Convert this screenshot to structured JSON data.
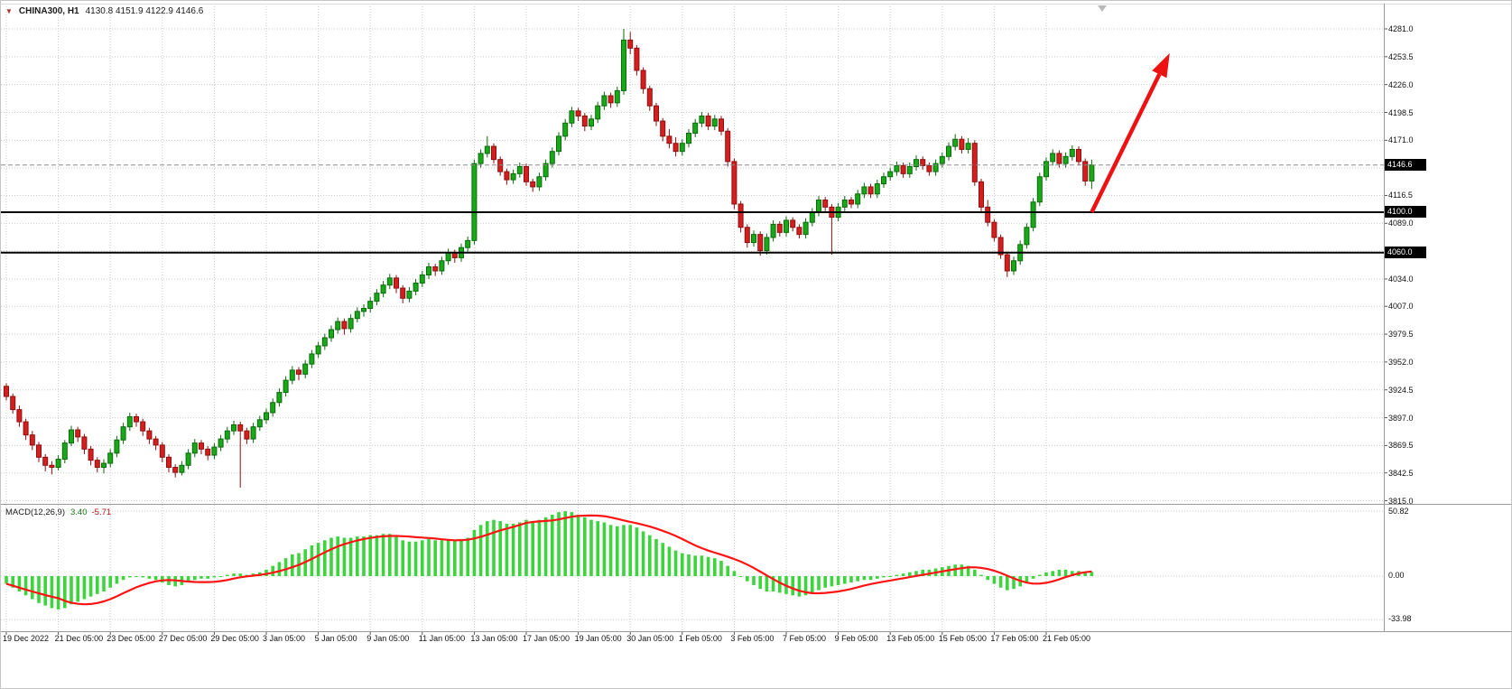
{
  "header": {
    "symbol_timeframe": "CHINA300, H1",
    "ohlc": "4130.8 4151.9 4122.9 4146.6"
  },
  "macd_panel": {
    "label": "MACD(12,26,9)",
    "main_value": "3.40",
    "signal_value": "-5.71",
    "scale": [
      "50.82",
      "0.00",
      "-33.98"
    ]
  },
  "price_axis": {
    "labels": [
      "4281.0",
      "4253.5",
      "4226.0",
      "4198.5",
      "4171.0",
      "4116.5",
      "4089.0",
      "4034.0",
      "4007.0",
      "3979.5",
      "3952.0",
      "3924.5",
      "3897.0",
      "3869.5",
      "3842.5",
      "3815.0"
    ],
    "current_price": "4146.6",
    "level_labels": [
      "4100.0",
      "4060.0"
    ]
  },
  "time_axis": {
    "labels": [
      "19 Dec 2022",
      "21 Dec 05:00",
      "23 Dec 05:00",
      "27 Dec 05:00",
      "29 Dec 05:00",
      "3 Jan 05:00",
      "5 Jan 05:00",
      "9 Jan 05:00",
      "11 Jan 05:00",
      "13 Jan 05:00",
      "17 Jan 05:00",
      "19 Jan 05:00",
      "30 Jan 05:00",
      "1 Feb 05:00",
      "3 Feb 05:00",
      "7 Feb 05:00",
      "9 Feb 05:00",
      "13 Feb 05:00",
      "15 Feb 05:00",
      "17 Feb 05:00",
      "21 Feb 05:00"
    ]
  },
  "colors": {
    "grid": "#c9c9c9",
    "bull_fill": "#18a818",
    "bull_stroke": "#0b6b0b",
    "bear_fill": "#d51f1f",
    "bear_stroke": "#8f0f0f",
    "level_line": "#000000",
    "current_line": "#8a8a8a",
    "macd_bar": "#3dd43d",
    "macd_signal": "#ff1414",
    "arrow": "#ee1111",
    "badge_bg": "#000000",
    "badge_text": "#ffffff"
  },
  "chart_data": {
    "type": "candlestick",
    "symbol": "CHINA300",
    "timeframe": "H1",
    "title": "CHINA300, H1 4130.8 4151.9 4122.9 4146.6",
    "ylim": [
      3815.0,
      4281.0
    ],
    "current_price": 4146.6,
    "last_ohlc": {
      "open": 4130.8,
      "high": 4151.9,
      "low": 4122.9,
      "close": 4146.6
    },
    "price_gridlines": [
      4281,
      4253.5,
      4226,
      4198.5,
      4171,
      4143.5,
      4116.5,
      4089,
      4061.5,
      4034,
      4007,
      3979.5,
      3952,
      3924.5,
      3897,
      3869.5,
      3842.5,
      3815
    ],
    "levels": [
      {
        "price": 4100.0,
        "label": "4100.0"
      },
      {
        "price": 4060.0,
        "label": "4060.0"
      }
    ],
    "trend_arrow": {
      "direction": "up",
      "from": {
        "bar": 167,
        "price": 4100
      },
      "to": {
        "bar": 179,
        "price": 4257
      }
    },
    "bars_per_tick": 8,
    "candles": [
      [
        3928,
        3931,
        3914,
        3918
      ],
      [
        3918,
        3921,
        3901,
        3905
      ],
      [
        3905,
        3909,
        3888,
        3893
      ],
      [
        3893,
        3896,
        3875,
        3880
      ],
      [
        3880,
        3884,
        3865,
        3870
      ],
      [
        3870,
        3873,
        3853,
        3858
      ],
      [
        3858,
        3861,
        3844,
        3850
      ],
      [
        3850,
        3854,
        3841,
        3848
      ],
      [
        3848,
        3860,
        3845,
        3856
      ],
      [
        3856,
        3875,
        3852,
        3872
      ],
      [
        3872,
        3889,
        3869,
        3885
      ],
      [
        3885,
        3888,
        3873,
        3878
      ],
      [
        3878,
        3881,
        3861,
        3866
      ],
      [
        3866,
        3869,
        3850,
        3855
      ],
      [
        3855,
        3858,
        3843,
        3848
      ],
      [
        3848,
        3856,
        3842,
        3852
      ],
      [
        3852,
        3866,
        3848,
        3862
      ],
      [
        3862,
        3879,
        3858,
        3875
      ],
      [
        3875,
        3892,
        3871,
        3888
      ],
      [
        3888,
        3902,
        3884,
        3898
      ],
      [
        3898,
        3901,
        3888,
        3893
      ],
      [
        3893,
        3896,
        3879,
        3884
      ],
      [
        3884,
        3887,
        3871,
        3876
      ],
      [
        3876,
        3879,
        3865,
        3870
      ],
      [
        3870,
        3873,
        3853,
        3858
      ],
      [
        3858,
        3861,
        3843,
        3848
      ],
      [
        3848,
        3851,
        3838,
        3843
      ],
      [
        3843,
        3854,
        3840,
        3850
      ],
      [
        3850,
        3866,
        3846,
        3862
      ],
      [
        3862,
        3876,
        3858,
        3872
      ],
      [
        3872,
        3875,
        3861,
        3866
      ],
      [
        3866,
        3869,
        3855,
        3860
      ],
      [
        3860,
        3872,
        3856,
        3868
      ],
      [
        3868,
        3880,
        3864,
        3876
      ],
      [
        3876,
        3888,
        3872,
        3884
      ],
      [
        3884,
        3894,
        3880,
        3890
      ],
      [
        3890,
        3893,
        3828,
        3884
      ],
      [
        3884,
        3887,
        3871,
        3876
      ],
      [
        3876,
        3892,
        3872,
        3888
      ],
      [
        3888,
        3899,
        3884,
        3895
      ],
      [
        3895,
        3906,
        3891,
        3902
      ],
      [
        3902,
        3916,
        3898,
        3912
      ],
      [
        3912,
        3926,
        3908,
        3922
      ],
      [
        3922,
        3938,
        3918,
        3934
      ],
      [
        3934,
        3948,
        3930,
        3944
      ],
      [
        3944,
        3947,
        3934,
        3940
      ],
      [
        3940,
        3954,
        3936,
        3950
      ],
      [
        3950,
        3964,
        3946,
        3960
      ],
      [
        3960,
        3972,
        3956,
        3968
      ],
      [
        3968,
        3980,
        3964,
        3976
      ],
      [
        3976,
        3988,
        3972,
        3984
      ],
      [
        3984,
        3996,
        3980,
        3992
      ],
      [
        3992,
        3995,
        3979,
        3985
      ],
      [
        3985,
        3999,
        3981,
        3995
      ],
      [
        3995,
        4006,
        3991,
        4002
      ],
      [
        4002,
        4009,
        3997,
        4005
      ],
      [
        4005,
        4016,
        4001,
        4012
      ],
      [
        4012,
        4024,
        4008,
        4020
      ],
      [
        4020,
        4032,
        4016,
        4028
      ],
      [
        4028,
        4039,
        4024,
        4035
      ],
      [
        4035,
        4038,
        4020,
        4025
      ],
      [
        4025,
        4028,
        4010,
        4015
      ],
      [
        4015,
        4026,
        4011,
        4022
      ],
      [
        4022,
        4034,
        4018,
        4030
      ],
      [
        4030,
        4042,
        4026,
        4038
      ],
      [
        4038,
        4050,
        4034,
        4046
      ],
      [
        4046,
        4049,
        4037,
        4042
      ],
      [
        4042,
        4056,
        4038,
        4052
      ],
      [
        4052,
        4064,
        4048,
        4060
      ],
      [
        4060,
        4063,
        4050,
        4055
      ],
      [
        4055,
        4069,
        4051,
        4065
      ],
      [
        4065,
        4076,
        4061,
        4072
      ],
      [
        4072,
        4152,
        4068,
        4148
      ],
      [
        4148,
        4162,
        4144,
        4158
      ],
      [
        4158,
        4175,
        4154,
        4165
      ],
      [
        4165,
        4168,
        4148,
        4152
      ],
      [
        4152,
        4155,
        4136,
        4140
      ],
      [
        4140,
        4143,
        4127,
        4132
      ],
      [
        4132,
        4142,
        4128,
        4138
      ],
      [
        4138,
        4149,
        4134,
        4145
      ],
      [
        4145,
        4148,
        4126,
        4130
      ],
      [
        4130,
        4133,
        4120,
        4125
      ],
      [
        4125,
        4139,
        4121,
        4135
      ],
      [
        4135,
        4152,
        4131,
        4148
      ],
      [
        4148,
        4164,
        4144,
        4160
      ],
      [
        4160,
        4179,
        4156,
        4175
      ],
      [
        4175,
        4192,
        4171,
        4188
      ],
      [
        4188,
        4204,
        4184,
        4200
      ],
      [
        4200,
        4203,
        4190,
        4195
      ],
      [
        4195,
        4198,
        4180,
        4185
      ],
      [
        4185,
        4196,
        4181,
        4192
      ],
      [
        4192,
        4209,
        4188,
        4205
      ],
      [
        4205,
        4219,
        4201,
        4215
      ],
      [
        4215,
        4218,
        4203,
        4208
      ],
      [
        4208,
        4224,
        4204,
        4220
      ],
      [
        4220,
        4281,
        4216,
        4270
      ],
      [
        4270,
        4278,
        4256,
        4262
      ],
      [
        4262,
        4265,
        4235,
        4240
      ],
      [
        4240,
        4243,
        4217,
        4222
      ],
      [
        4222,
        4225,
        4200,
        4205
      ],
      [
        4205,
        4208,
        4185,
        4190
      ],
      [
        4190,
        4193,
        4170,
        4175
      ],
      [
        4175,
        4182,
        4163,
        4168
      ],
      [
        4168,
        4174,
        4155,
        4160
      ],
      [
        4160,
        4172,
        4156,
        4168
      ],
      [
        4168,
        4182,
        4164,
        4178
      ],
      [
        4178,
        4192,
        4174,
        4188
      ],
      [
        4188,
        4199,
        4184,
        4195
      ],
      [
        4195,
        4198,
        4181,
        4185
      ],
      [
        4185,
        4196,
        4181,
        4192
      ],
      [
        4192,
        4195,
        4176,
        4180
      ],
      [
        4180,
        4183,
        4145,
        4150
      ],
      [
        4150,
        4153,
        4103,
        4108
      ],
      [
        4108,
        4111,
        4080,
        4085
      ],
      [
        4085,
        4088,
        4065,
        4070
      ],
      [
        4070,
        4082,
        4066,
        4078
      ],
      [
        4078,
        4081,
        4057,
        4062
      ],
      [
        4062,
        4079,
        4058,
        4075
      ],
      [
        4075,
        4092,
        4071,
        4088
      ],
      [
        4088,
        4091,
        4076,
        4080
      ],
      [
        4080,
        4096,
        4076,
        4092
      ],
      [
        4092,
        4095,
        4081,
        4085
      ],
      [
        4085,
        4088,
        4074,
        4078
      ],
      [
        4078,
        4094,
        4074,
        4090
      ],
      [
        4090,
        4104,
        4086,
        4100
      ],
      [
        4100,
        4116,
        4096,
        4112
      ],
      [
        4112,
        4115,
        4101,
        4105
      ],
      [
        4105,
        4108,
        4058,
        4095
      ],
      [
        4095,
        4109,
        4091,
        4105
      ],
      [
        4105,
        4116,
        4101,
        4112
      ],
      [
        4112,
        4115,
        4104,
        4108
      ],
      [
        4108,
        4122,
        4104,
        4118
      ],
      [
        4118,
        4129,
        4114,
        4125
      ],
      [
        4125,
        4128,
        4114,
        4118
      ],
      [
        4118,
        4132,
        4114,
        4128
      ],
      [
        4128,
        4139,
        4124,
        4135
      ],
      [
        4135,
        4144,
        4131,
        4140
      ],
      [
        4140,
        4150,
        4136,
        4146
      ],
      [
        4146,
        4149,
        4134,
        4138
      ],
      [
        4138,
        4149,
        4134,
        4145
      ],
      [
        4145,
        4156,
        4141,
        4152
      ],
      [
        4152,
        4155,
        4142,
        4146
      ],
      [
        4146,
        4149,
        4136,
        4140
      ],
      [
        4140,
        4152,
        4136,
        4148
      ],
      [
        4148,
        4159,
        4144,
        4155
      ],
      [
        4155,
        4169,
        4151,
        4165
      ],
      [
        4165,
        4177,
        4161,
        4172
      ],
      [
        4172,
        4175,
        4158,
        4162
      ],
      [
        4162,
        4173,
        4158,
        4168
      ],
      [
        4168,
        4171,
        4126,
        4130
      ],
      [
        4130,
        4133,
        4100,
        4105
      ],
      [
        4105,
        4112,
        4086,
        4090
      ],
      [
        4090,
        4093,
        4071,
        4075
      ],
      [
        4075,
        4078,
        4054,
        4058
      ],
      [
        4058,
        4061,
        4036,
        4042
      ],
      [
        4042,
        4056,
        4038,
        4052
      ],
      [
        4052,
        4072,
        4048,
        4068
      ],
      [
        4068,
        4089,
        4064,
        4085
      ],
      [
        4085,
        4114,
        4081,
        4110
      ],
      [
        4110,
        4139,
        4106,
        4135
      ],
      [
        4135,
        4154,
        4131,
        4150
      ],
      [
        4150,
        4162,
        4146,
        4158
      ],
      [
        4158,
        4161,
        4144,
        4148
      ],
      [
        4148,
        4159,
        4144,
        4155
      ],
      [
        4155,
        4166,
        4151,
        4162
      ],
      [
        4162,
        4165,
        4146,
        4150
      ],
      [
        4150,
        4153,
        4126,
        4130.8
      ],
      [
        4130.8,
        4151.9,
        4122.9,
        4146.6
      ]
    ],
    "macd": {
      "label": "MACD(12,26,9)",
      "last_main": 3.4,
      "last_signal": -5.71,
      "scale_max": 50.82,
      "scale_min": -33.98,
      "signal_method": "SMA9 of histogram",
      "histogram": [
        -6,
        -9,
        -12,
        -15,
        -18,
        -21,
        -23,
        -25,
        -26,
        -25,
        -22,
        -20,
        -18,
        -16,
        -14,
        -12,
        -9,
        -6,
        -3,
        -1,
        0,
        -1,
        -2,
        -3,
        -5,
        -7,
        -8,
        -7,
        -5,
        -3,
        -2,
        -2,
        -1,
        0,
        1,
        2,
        2,
        1,
        2,
        3,
        5,
        8,
        11,
        14,
        17,
        18,
        21,
        24,
        26,
        28,
        30,
        31,
        30,
        30,
        31,
        31,
        32,
        32,
        33,
        33,
        31,
        28,
        27,
        27,
        28,
        29,
        28,
        28,
        29,
        28,
        29,
        30,
        36,
        40,
        43,
        44,
        43,
        41,
        41,
        42,
        44,
        43,
        44,
        46,
        48,
        50,
        50.8,
        50,
        48,
        46,
        44,
        43,
        42,
        40,
        39,
        40,
        40,
        38,
        35,
        32,
        29,
        26,
        23,
        20,
        18,
        17,
        16,
        16,
        15,
        14,
        12,
        8,
        4,
        0,
        -4,
        -7,
        -10,
        -12,
        -12,
        -13,
        -14,
        -15,
        -16,
        -15,
        -13,
        -11,
        -9,
        -8,
        -7,
        -6,
        -5,
        -4,
        -3,
        -3,
        -2,
        -1,
        0,
        1,
        2,
        3,
        4,
        5,
        5,
        6,
        7,
        8,
        9,
        9,
        8,
        5,
        1,
        -3,
        -6,
        -9,
        -11,
        -10,
        -8,
        -5,
        -2,
        1,
        3,
        4,
        5,
        5,
        4,
        4,
        3.5,
        3.4
      ]
    }
  }
}
